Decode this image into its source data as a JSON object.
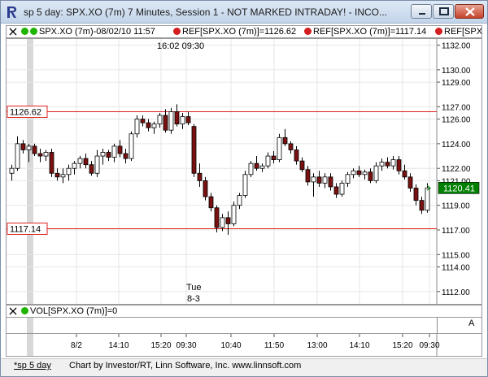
{
  "window": {
    "title": "sp 5 day: SPX.XO (7m) 7 Minutes, Session 1 - NOT MARKED INTRADAY! - INCO...",
    "buttons": [
      "minimize",
      "maximize",
      "close"
    ]
  },
  "legend": {
    "main": "SPX.XO (7m)-08/02/10 11:57",
    "ref1": "REF[SPX.XO (7m)]=1126.62",
    "ref2": "REF[SPX.XO (7m)]=1117.14",
    "ref3": "REF[SPX.X"
  },
  "colors": {
    "accent_green": "#1fb400",
    "accent_red": "#d21e1e",
    "ref_line": "#e02020",
    "down_candle": "#7a1010",
    "price_box": "#008000"
  },
  "chart_data": {
    "type": "candlestick",
    "y_range": [
      1111.0,
      1132.5
    ],
    "y_ticks": [
      "1132.00",
      "1130.00",
      "1129.00",
      "1127.00",
      "1126.00",
      "1124.00",
      "1122.00",
      "1121.00",
      "1119.00",
      "1117.00",
      "1115.00",
      "1114.00",
      "1112.00"
    ],
    "y_tick_values": [
      1132,
      1130,
      1129,
      1127,
      1126,
      1124,
      1122,
      1121,
      1119,
      1117,
      1115,
      1114,
      1112
    ],
    "x_ticks": [
      "8/2",
      "14:10",
      "15:20",
      "09:30",
      "10:40",
      "11:50",
      "13:00",
      "14:10",
      "15:20",
      "09:30"
    ],
    "ref_lines": [
      {
        "label": "1126.62",
        "value": 1126.62
      },
      {
        "label": "1117.14",
        "value": 1117.14
      }
    ],
    "last_price": {
      "label": "1120.41",
      "value": 1120.41
    },
    "annotations": {
      "time_top": "16:02  09:30",
      "day_name": "Tue",
      "day_date": "8-3"
    },
    "candles": [
      {
        "o": 1121.6,
        "h": 1122.3,
        "l": 1121.0,
        "c": 1122.0
      },
      {
        "o": 1122.0,
        "h": 1124.6,
        "l": 1121.8,
        "c": 1124.0
      },
      {
        "o": 1124.0,
        "h": 1124.3,
        "l": 1123.2,
        "c": 1123.5
      },
      {
        "o": 1123.5,
        "h": 1124.0,
        "l": 1122.5,
        "c": 1123.8
      },
      {
        "o": 1123.8,
        "h": 1124.0,
        "l": 1123.0,
        "c": 1123.2
      },
      {
        "o": 1123.2,
        "h": 1123.6,
        "l": 1122.5,
        "c": 1123.0
      },
      {
        "o": 1123.0,
        "h": 1123.5,
        "l": 1122.6,
        "c": 1123.3
      },
      {
        "o": 1123.3,
        "h": 1123.6,
        "l": 1121.3,
        "c": 1121.6
      },
      {
        "o": 1121.6,
        "h": 1122.0,
        "l": 1121.0,
        "c": 1121.3
      },
      {
        "o": 1121.3,
        "h": 1122.0,
        "l": 1120.8,
        "c": 1121.5
      },
      {
        "o": 1121.5,
        "h": 1122.3,
        "l": 1121.0,
        "c": 1122.0
      },
      {
        "o": 1122.0,
        "h": 1122.6,
        "l": 1121.5,
        "c": 1122.4
      },
      {
        "o": 1122.4,
        "h": 1123.0,
        "l": 1122.0,
        "c": 1122.8
      },
      {
        "o": 1122.8,
        "h": 1123.2,
        "l": 1122.0,
        "c": 1122.3
      },
      {
        "o": 1122.3,
        "h": 1122.6,
        "l": 1121.4,
        "c": 1121.6
      },
      {
        "o": 1121.6,
        "h": 1123.5,
        "l": 1121.3,
        "c": 1123.0
      },
      {
        "o": 1123.0,
        "h": 1123.6,
        "l": 1122.3,
        "c": 1123.3
      },
      {
        "o": 1123.3,
        "h": 1123.5,
        "l": 1122.6,
        "c": 1122.9
      },
      {
        "o": 1122.9,
        "h": 1124.0,
        "l": 1122.5,
        "c": 1123.8
      },
      {
        "o": 1123.8,
        "h": 1124.3,
        "l": 1122.9,
        "c": 1123.2
      },
      {
        "o": 1123.2,
        "h": 1123.6,
        "l": 1122.4,
        "c": 1122.8
      },
      {
        "o": 1122.8,
        "h": 1125.0,
        "l": 1122.6,
        "c": 1124.8
      },
      {
        "o": 1124.8,
        "h": 1126.3,
        "l": 1124.5,
        "c": 1126.0
      },
      {
        "o": 1126.0,
        "h": 1126.3,
        "l": 1125.4,
        "c": 1125.7
      },
      {
        "o": 1125.7,
        "h": 1126.0,
        "l": 1125.0,
        "c": 1125.3
      },
      {
        "o": 1125.3,
        "h": 1125.8,
        "l": 1124.8,
        "c": 1125.6
      },
      {
        "o": 1125.6,
        "h": 1126.5,
        "l": 1125.3,
        "c": 1126.3
      },
      {
        "o": 1126.3,
        "h": 1126.8,
        "l": 1124.9,
        "c": 1125.1
      },
      {
        "o": 1125.1,
        "h": 1126.9,
        "l": 1124.8,
        "c": 1126.6
      },
      {
        "o": 1126.6,
        "h": 1127.2,
        "l": 1125.4,
        "c": 1125.6
      },
      {
        "o": 1125.6,
        "h": 1126.5,
        "l": 1125.2,
        "c": 1126.2
      },
      {
        "o": 1126.2,
        "h": 1126.6,
        "l": 1125.5,
        "c": 1125.7
      },
      {
        "o": 1125.4,
        "h": 1125.6,
        "l": 1121.3,
        "c": 1121.6
      },
      {
        "o": 1121.6,
        "h": 1122.4,
        "l": 1120.5,
        "c": 1121.0
      },
      {
        "o": 1121.0,
        "h": 1121.3,
        "l": 1119.4,
        "c": 1119.7
      },
      {
        "o": 1119.7,
        "h": 1120.0,
        "l": 1118.5,
        "c": 1118.8
      },
      {
        "o": 1118.8,
        "h": 1119.0,
        "l": 1116.8,
        "c": 1117.2
      },
      {
        "o": 1117.2,
        "h": 1118.3,
        "l": 1116.9,
        "c": 1118.0
      },
      {
        "o": 1118.0,
        "h": 1118.5,
        "l": 1116.6,
        "c": 1117.5
      },
      {
        "o": 1117.5,
        "h": 1119.3,
        "l": 1117.3,
        "c": 1119.0
      },
      {
        "o": 1119.0,
        "h": 1120.0,
        "l": 1118.7,
        "c": 1119.8
      },
      {
        "o": 1119.8,
        "h": 1121.8,
        "l": 1119.6,
        "c": 1121.5
      },
      {
        "o": 1121.5,
        "h": 1122.6,
        "l": 1121.3,
        "c": 1122.4
      },
      {
        "o": 1122.4,
        "h": 1123.0,
        "l": 1121.8,
        "c": 1122.0
      },
      {
        "o": 1122.0,
        "h": 1122.4,
        "l": 1121.7,
        "c": 1122.2
      },
      {
        "o": 1122.2,
        "h": 1123.3,
        "l": 1122.0,
        "c": 1123.0
      },
      {
        "o": 1123.0,
        "h": 1123.4,
        "l": 1122.4,
        "c": 1122.7
      },
      {
        "o": 1122.7,
        "h": 1124.8,
        "l": 1122.5,
        "c": 1124.5
      },
      {
        "o": 1124.5,
        "h": 1125.2,
        "l": 1123.8,
        "c": 1124.0
      },
      {
        "o": 1124.0,
        "h": 1124.2,
        "l": 1123.2,
        "c": 1123.5
      },
      {
        "o": 1123.5,
        "h": 1123.8,
        "l": 1122.3,
        "c": 1122.6
      },
      {
        "o": 1122.6,
        "h": 1122.9,
        "l": 1121.7,
        "c": 1121.9
      },
      {
        "o": 1121.9,
        "h": 1122.2,
        "l": 1120.6,
        "c": 1120.9
      },
      {
        "o": 1120.9,
        "h": 1121.6,
        "l": 1119.7,
        "c": 1121.3
      },
      {
        "o": 1121.3,
        "h": 1121.8,
        "l": 1120.5,
        "c": 1120.8
      },
      {
        "o": 1120.8,
        "h": 1121.6,
        "l": 1120.4,
        "c": 1121.3
      },
      {
        "o": 1121.3,
        "h": 1121.6,
        "l": 1120.2,
        "c": 1120.5
      },
      {
        "o": 1120.5,
        "h": 1120.8,
        "l": 1119.6,
        "c": 1119.9
      },
      {
        "o": 1119.9,
        "h": 1121.0,
        "l": 1119.7,
        "c": 1120.8
      },
      {
        "o": 1120.8,
        "h": 1121.7,
        "l": 1120.5,
        "c": 1121.5
      },
      {
        "o": 1121.5,
        "h": 1122.0,
        "l": 1121.2,
        "c": 1121.8
      },
      {
        "o": 1121.8,
        "h": 1122.2,
        "l": 1121.3,
        "c": 1121.5
      },
      {
        "o": 1121.5,
        "h": 1121.9,
        "l": 1121.1,
        "c": 1121.7
      },
      {
        "o": 1121.7,
        "h": 1122.0,
        "l": 1120.8,
        "c": 1121.0
      },
      {
        "o": 1121.0,
        "h": 1122.5,
        "l": 1120.8,
        "c": 1122.2
      },
      {
        "o": 1122.2,
        "h": 1122.8,
        "l": 1121.8,
        "c": 1122.5
      },
      {
        "o": 1122.5,
        "h": 1122.9,
        "l": 1122.0,
        "c": 1122.2
      },
      {
        "o": 1122.2,
        "h": 1123.0,
        "l": 1121.9,
        "c": 1122.7
      },
      {
        "o": 1122.7,
        "h": 1123.0,
        "l": 1121.5,
        "c": 1121.8
      },
      {
        "o": 1121.8,
        "h": 1122.3,
        "l": 1121.1,
        "c": 1121.3
      },
      {
        "o": 1121.3,
        "h": 1121.6,
        "l": 1120.1,
        "c": 1120.4
      },
      {
        "o": 1120.4,
        "h": 1120.7,
        "l": 1119.0,
        "c": 1119.4
      },
      {
        "o": 1119.4,
        "h": 1119.7,
        "l": 1118.3,
        "c": 1118.6
      },
      {
        "o": 1118.6,
        "h": 1120.8,
        "l": 1118.4,
        "c": 1120.41
      }
    ]
  },
  "volume": {
    "label": "VOL[SPX.XO (7m)]=0",
    "scale_letter": "A"
  },
  "status": {
    "tab": "*sp 5 day",
    "credit": "Chart by Investor/RT, Linn Software, Inc. www.linnsoft.com"
  }
}
